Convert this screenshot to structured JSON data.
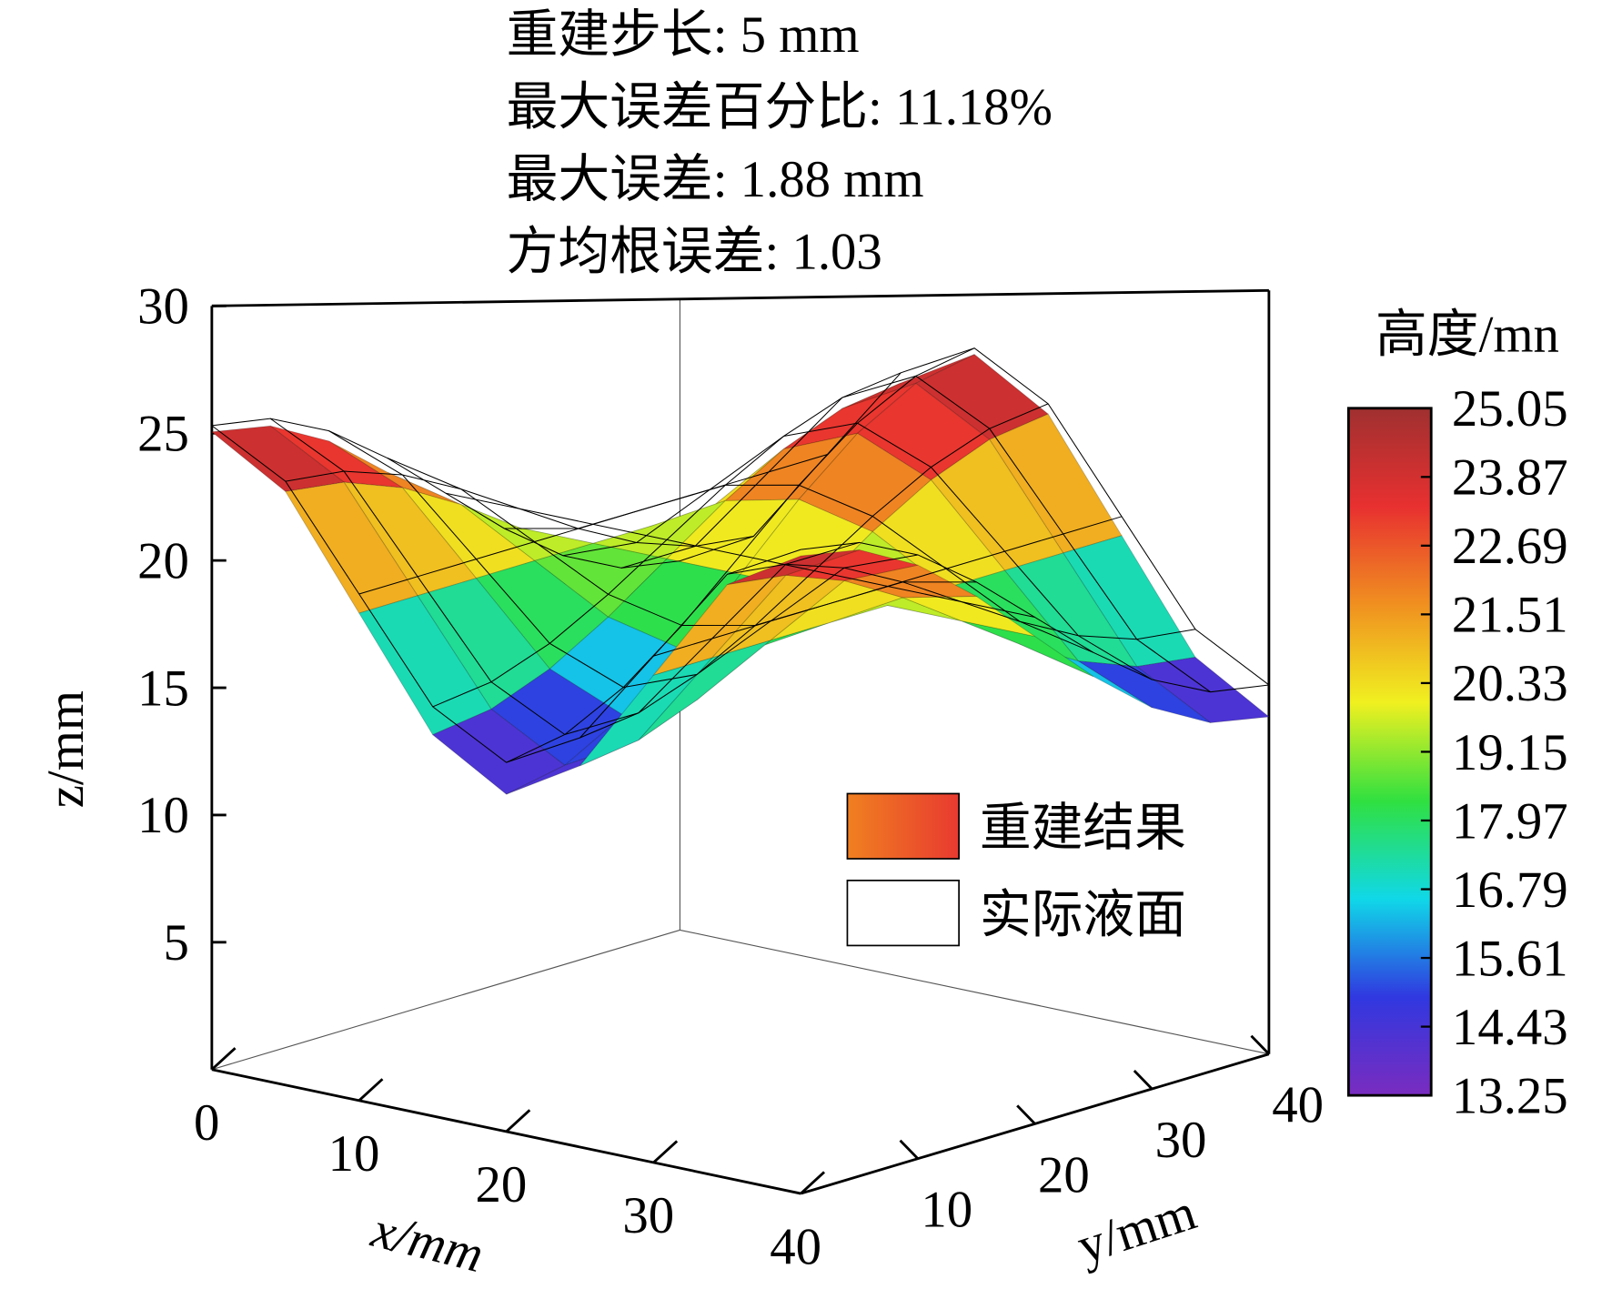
{
  "chart_data": {
    "type": "surface3d",
    "annotations": [
      "重建步长: 5 mm",
      "最大误差百分比: 11.18%",
      "最大误差: 1.88 mm",
      "方均根误差: 1.03"
    ],
    "x_label": "x/mm",
    "y_label": "y/mm",
    "z_label": "z/mm",
    "x": [
      0,
      5,
      10,
      15,
      20,
      25,
      30,
      35,
      40
    ],
    "y": [
      0,
      5,
      10,
      15,
      20,
      25,
      30,
      35,
      40
    ],
    "xlim": [
      0,
      40
    ],
    "ylim": [
      0,
      40
    ],
    "zlim": [
      0,
      30
    ],
    "xticks": [
      0,
      10,
      20,
      30,
      40
    ],
    "yticks": [
      10,
      20,
      30,
      40
    ],
    "zticks": [
      5,
      10,
      15,
      20,
      25,
      30
    ],
    "surfaces": [
      {
        "name": "重建结果",
        "style": "colormap",
        "z": [
          [
            25.05,
            24.6,
            23.32,
            21.41,
            19.15,
            16.89,
            14.98,
            13.7,
            13.25
          ],
          [
            23.32,
            23.0,
            22.1,
            20.75,
            19.15,
            17.55,
            16.2,
            15.3,
            14.98
          ],
          [
            19.15,
            19.15,
            19.15,
            19.15,
            19.15,
            19.15,
            19.15,
            19.15,
            19.15
          ],
          [
            14.98,
            15.3,
            16.2,
            17.55,
            19.15,
            20.75,
            22.1,
            23.0,
            23.32
          ],
          [
            13.25,
            13.7,
            14.98,
            16.89,
            19.15,
            21.41,
            23.32,
            24.6,
            25.05
          ],
          [
            14.98,
            15.3,
            16.2,
            17.55,
            19.15,
            20.75,
            22.1,
            23.0,
            23.32
          ],
          [
            19.15,
            19.15,
            19.15,
            19.15,
            19.15,
            19.15,
            19.15,
            19.15,
            19.15
          ],
          [
            23.32,
            23.0,
            22.1,
            20.75,
            19.15,
            17.55,
            16.2,
            15.3,
            14.98
          ],
          [
            25.05,
            24.6,
            23.32,
            21.41,
            19.15,
            16.89,
            14.98,
            13.7,
            13.25
          ]
        ]
      },
      {
        "name": "实际液面",
        "style": "wireframe",
        "color": "#000000",
        "z": [
          [
            25.3,
            24.89,
            23.72,
            21.97,
            19.9,
            17.83,
            16.08,
            14.91,
            14.5
          ],
          [
            23.72,
            23.43,
            22.6,
            21.36,
            19.9,
            18.44,
            17.2,
            16.37,
            16.08
          ],
          [
            19.9,
            19.9,
            19.9,
            19.9,
            19.9,
            19.9,
            19.9,
            19.9,
            19.9
          ],
          [
            16.08,
            16.37,
            17.2,
            18.44,
            19.9,
            21.36,
            22.6,
            23.43,
            23.72
          ],
          [
            14.5,
            14.91,
            16.08,
            17.83,
            19.9,
            21.97,
            23.72,
            24.89,
            25.3
          ],
          [
            16.08,
            16.37,
            17.2,
            18.44,
            19.9,
            21.36,
            22.6,
            23.43,
            23.72
          ],
          [
            19.9,
            19.9,
            19.9,
            19.9,
            19.9,
            19.9,
            19.9,
            19.9,
            19.9
          ],
          [
            23.72,
            23.43,
            22.6,
            21.36,
            19.9,
            18.44,
            17.2,
            16.37,
            16.08
          ],
          [
            25.3,
            24.89,
            23.72,
            21.97,
            19.9,
            17.83,
            16.08,
            14.91,
            14.5
          ]
        ]
      }
    ],
    "colorbar_title": "高度/mn",
    "clim": [
      13.25,
      25.05
    ],
    "colorbar_ticks": [
      13.25,
      14.43,
      15.61,
      16.79,
      17.97,
      19.15,
      20.33,
      21.51,
      22.69,
      23.87,
      25.05
    ],
    "colormap": [
      "#7a2cbf",
      "#3038e0",
      "#10d8e8",
      "#30e040",
      "#f0f020",
      "#f09020",
      "#e83030",
      "#a03030"
    ]
  }
}
